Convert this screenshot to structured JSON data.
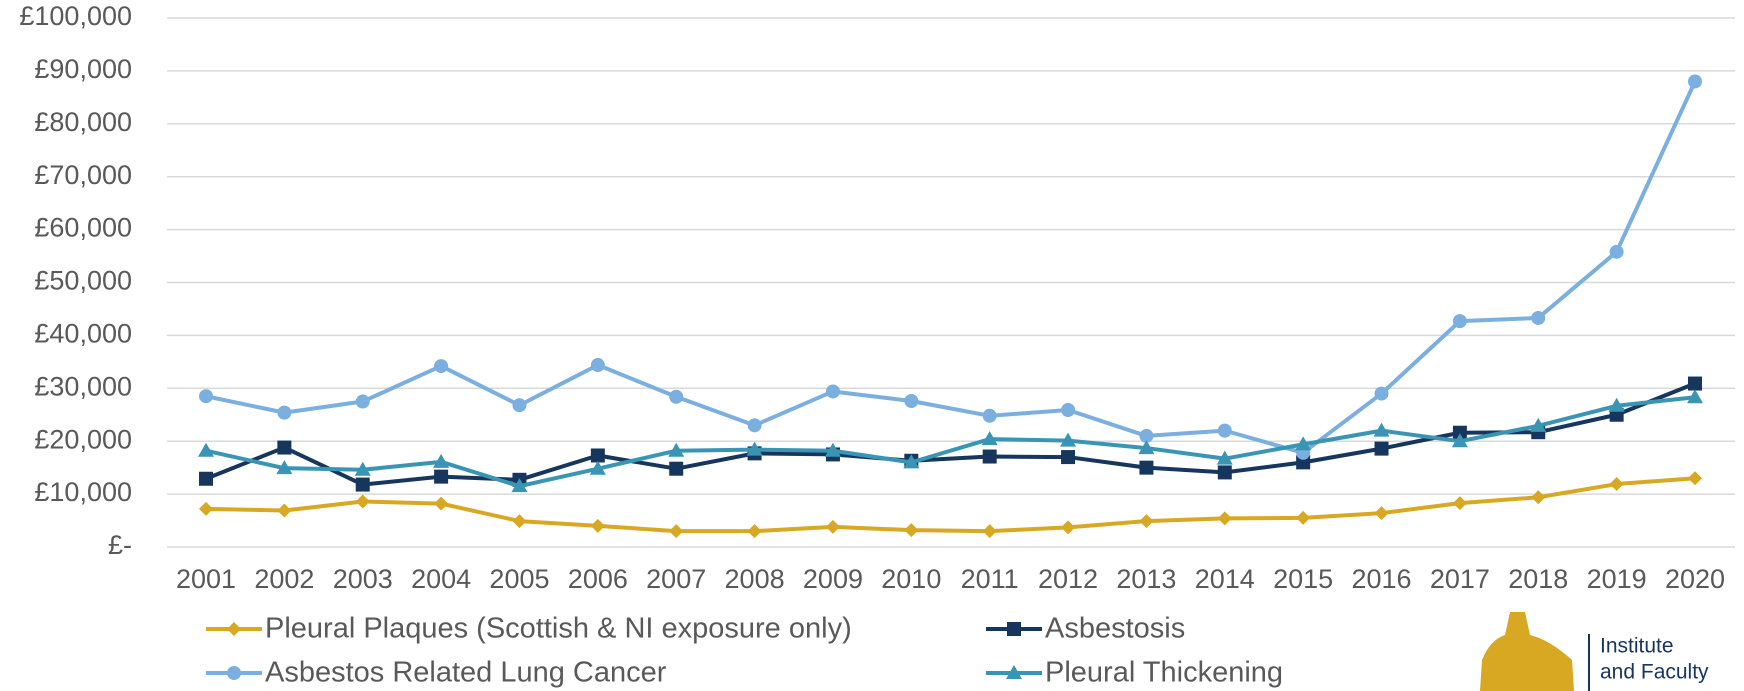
{
  "chart_data": {
    "type": "line",
    "categories": [
      "2001",
      "2002",
      "2003",
      "2004",
      "2005",
      "2006",
      "2007",
      "2008",
      "2009",
      "2010",
      "2011",
      "2012",
      "2013",
      "2014",
      "2015",
      "2016",
      "2017",
      "2018",
      "2019",
      "2020"
    ],
    "series": [
      {
        "name": "Pleural Plaques (Scottish & NI exposure only)",
        "color": "#d8a823",
        "marker": "diamond",
        "values": [
          7200,
          6900,
          8600,
          8200,
          4900,
          4000,
          3000,
          3000,
          3800,
          3200,
          3000,
          3700,
          4900,
          5400,
          5500,
          6400,
          8300,
          9400,
          11900,
          13000
        ]
      },
      {
        "name": "Asbestosis",
        "color": "#17365d",
        "marker": "square",
        "values": [
          12900,
          18800,
          11800,
          13300,
          12700,
          17300,
          14800,
          17700,
          17500,
          16300,
          17100,
          17000,
          15000,
          14100,
          16000,
          18600,
          21600,
          21700,
          25000,
          30900
        ]
      },
      {
        "name": "Asbestos Related Lung Cancer",
        "color": "#7aafdf",
        "marker": "circle",
        "values": [
          28500,
          25400,
          27500,
          34200,
          26800,
          34400,
          28400,
          23000,
          29400,
          27600,
          24800,
          25900,
          21000,
          22000,
          17800,
          29000,
          42700,
          43300,
          55800,
          88000
        ]
      },
      {
        "name": "Pleural Thickening",
        "color": "#3a95b5",
        "marker": "triangle",
        "values": [
          18200,
          14900,
          14600,
          16100,
          11500,
          14800,
          18200,
          18400,
          18200,
          16000,
          20400,
          20100,
          18700,
          16700,
          19400,
          22000,
          20000,
          22900,
          26700,
          28300
        ]
      }
    ],
    "ylim": [
      0,
      100000
    ],
    "yticks": [
      {
        "value": 0,
        "label": "£-"
      },
      {
        "value": 10000,
        "label": "£10,000"
      },
      {
        "value": 20000,
        "label": "£20,000"
      },
      {
        "value": 30000,
        "label": "£30,000"
      },
      {
        "value": 40000,
        "label": "£40,000"
      },
      {
        "value": 50000,
        "label": "£50,000"
      },
      {
        "value": 60000,
        "label": "£60,000"
      },
      {
        "value": 70000,
        "label": "£70,000"
      },
      {
        "value": 80000,
        "label": "£80,000"
      },
      {
        "value": 90000,
        "label": "£90,000"
      },
      {
        "value": 100000,
        "label": "£100,000"
      }
    ],
    "grid": true
  },
  "logo": {
    "lines": [
      "Institute",
      "and Faculty"
    ]
  }
}
